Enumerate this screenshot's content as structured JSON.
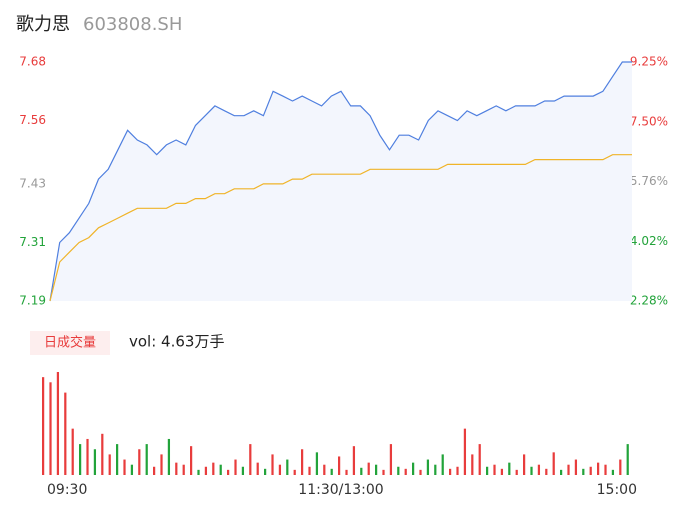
{
  "header": {
    "name": "歌力思",
    "code": "603808.SH"
  },
  "chart_data": [
    {
      "type": "line",
      "xlim": [
        0,
        240
      ],
      "xticks": [
        {
          "value": 0,
          "label": "09:30"
        },
        {
          "value": 120,
          "label": "11:30/13:00"
        },
        {
          "value": 240,
          "label": "15:00"
        }
      ],
      "ylim": [
        7.19,
        7.68
      ],
      "yticks": [
        7.19,
        7.31,
        7.43,
        7.56,
        7.68
      ],
      "y2lim": [
        2.28,
        9.25
      ],
      "y2ticks": [
        {
          "value": 2.28,
          "label": "2.28%"
        },
        {
          "value": 4.02,
          "label": "4.02%"
        },
        {
          "value": 5.76,
          "label": "5.76%"
        },
        {
          "value": 7.5,
          "label": "7.50%"
        },
        {
          "value": 9.25,
          "label": "9.25%"
        }
      ],
      "up_color": "#e83c3c",
      "flat_color": "#999999",
      "down_color": "#22a33a",
      "series": [
        {
          "color": "#4f7fdf",
          "area_color": "#f3f6fd",
          "values": [
            7.19,
            7.31,
            7.33,
            7.36,
            7.39,
            7.44,
            7.46,
            7.5,
            7.54,
            7.52,
            7.51,
            7.49,
            7.51,
            7.52,
            7.51,
            7.55,
            7.57,
            7.59,
            7.58,
            7.57,
            7.57,
            7.58,
            7.57,
            7.62,
            7.61,
            7.6,
            7.61,
            7.6,
            7.59,
            7.61,
            7.62,
            7.59,
            7.59,
            7.57,
            7.53,
            7.5,
            7.53,
            7.53,
            7.52,
            7.56,
            7.58,
            7.57,
            7.56,
            7.58,
            7.57,
            7.58,
            7.59,
            7.58,
            7.59,
            7.59,
            7.59,
            7.6,
            7.6,
            7.61,
            7.61,
            7.61,
            7.61,
            7.62,
            7.65,
            7.68,
            7.68
          ]
        },
        {
          "color": "#f0b429",
          "values": [
            7.19,
            7.27,
            7.29,
            7.31,
            7.32,
            7.34,
            7.35,
            7.36,
            7.37,
            7.38,
            7.38,
            7.38,
            7.38,
            7.39,
            7.39,
            7.4,
            7.4,
            7.41,
            7.41,
            7.42,
            7.42,
            7.42,
            7.43,
            7.43,
            7.43,
            7.44,
            7.44,
            7.45,
            7.45,
            7.45,
            7.45,
            7.45,
            7.45,
            7.46,
            7.46,
            7.46,
            7.46,
            7.46,
            7.46,
            7.46,
            7.46,
            7.47,
            7.47,
            7.47,
            7.47,
            7.47,
            7.47,
            7.47,
            7.47,
            7.47,
            7.48,
            7.48,
            7.48,
            7.48,
            7.48,
            7.48,
            7.48,
            7.48,
            7.49,
            7.49,
            7.49
          ]
        }
      ]
    },
    {
      "type": "volume",
      "button": "日成交量",
      "label": "vol: 4.63万手",
      "ylim": [
        0,
        100
      ],
      "up_color": "#e83c3c",
      "down_color": "#22a33a",
      "values": [
        95,
        90,
        100,
        80,
        45,
        30,
        35,
        25,
        40,
        20,
        30,
        15,
        10,
        25,
        30,
        8,
        20,
        35,
        12,
        10,
        28,
        5,
        8,
        12,
        10,
        5,
        15,
        8,
        30,
        12,
        6,
        20,
        10,
        15,
        5,
        25,
        8,
        22,
        10,
        6,
        18,
        5,
        28,
        7,
        12,
        10,
        5,
        30,
        8,
        6,
        12,
        5,
        15,
        10,
        20,
        6,
        8,
        45,
        20,
        30,
        8,
        10,
        6,
        12,
        5,
        20,
        8,
        10,
        6,
        22,
        5,
        10,
        15,
        6,
        8,
        12,
        10,
        5,
        15,
        30
      ],
      "rising": [
        true,
        true,
        true,
        true,
        true,
        false,
        true,
        false,
        true,
        true,
        false,
        true,
        false,
        true,
        false,
        true,
        true,
        false,
        true,
        true,
        true,
        false,
        true,
        true,
        false,
        true,
        true,
        false,
        true,
        true,
        false,
        true,
        true,
        false,
        true,
        true,
        true,
        false,
        true,
        false,
        true,
        true,
        true,
        false,
        true,
        false,
        true,
        true,
        false,
        true,
        false,
        true,
        false,
        false,
        false,
        true,
        true,
        true,
        true,
        true,
        false,
        true,
        true,
        false,
        true,
        true,
        false,
        true,
        true,
        true,
        false,
        true,
        true,
        false,
        true,
        true,
        true,
        false,
        true,
        false
      ]
    }
  ]
}
